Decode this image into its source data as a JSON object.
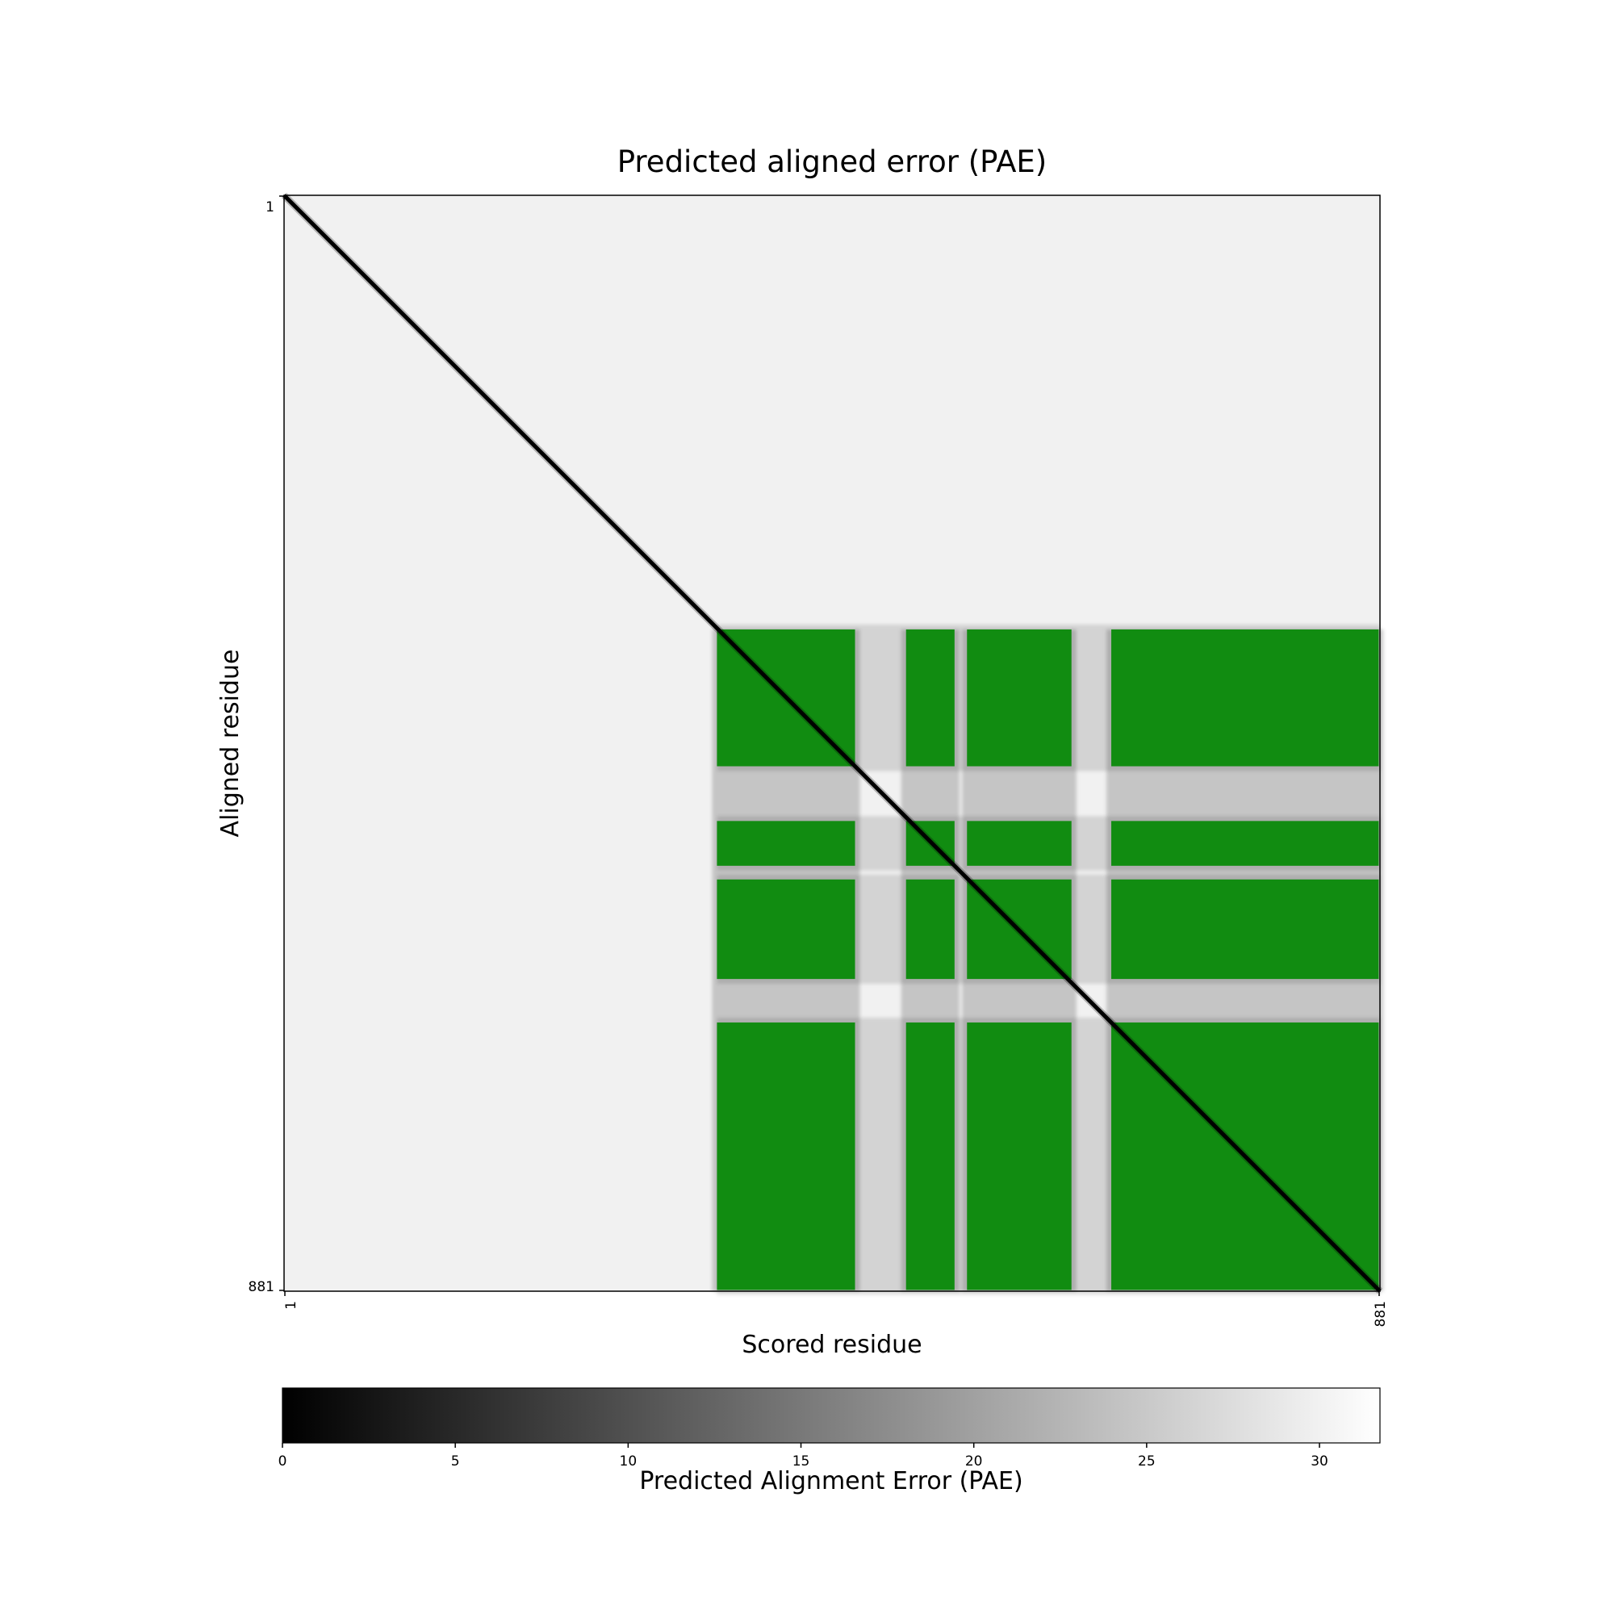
{
  "chart_data": {
    "type": "heatmap",
    "title": "Predicted aligned error (PAE)",
    "xlabel": "Scored residue",
    "ylabel": "Aligned residue",
    "x_range": [
      1,
      881
    ],
    "y_range": [
      1,
      881
    ],
    "x_ticks": [
      "1",
      "881"
    ],
    "y_ticks": [
      "1",
      "881"
    ],
    "diagonal_value": 0,
    "background_value": 30,
    "colormap": "greys_r",
    "highlight_color": "#0a8a0a",
    "highlighted_block_value": 3,
    "highlight_regions": {
      "columns": [
        [
          349,
          460
        ],
        [
          501,
          540
        ],
        [
          550,
          634
        ],
        [
          666,
          881
        ]
      ],
      "rows": [
        [
          350,
          460
        ],
        [
          504,
          540
        ],
        [
          551,
          631
        ],
        [
          666,
          881
        ]
      ]
    },
    "colorbar": {
      "label": "Predicted Alignment Error (PAE)",
      "min": 0,
      "max": 31.75,
      "ticks": [
        "0",
        "5",
        "10",
        "15",
        "20",
        "25",
        "30"
      ]
    }
  }
}
